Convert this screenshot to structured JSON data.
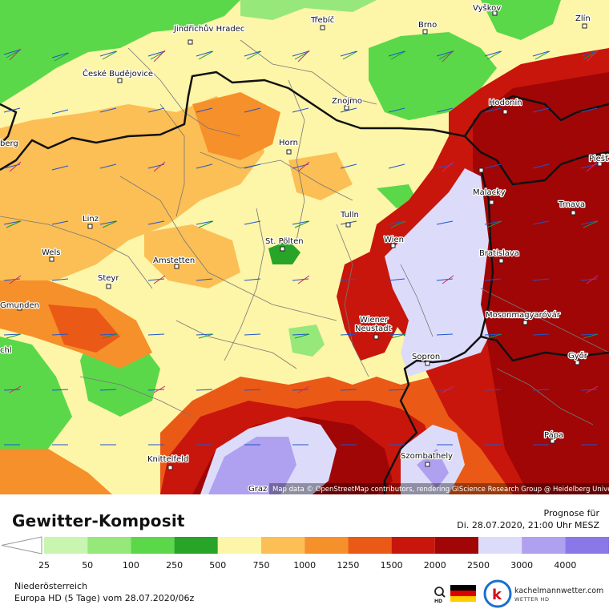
{
  "legend": {
    "title": "Gewitter-Komposit",
    "levels": [
      "25",
      "50",
      "100",
      "250",
      "500",
      "750",
      "1000",
      "1250",
      "1500",
      "2000",
      "2500",
      "3000",
      "4000"
    ],
    "colors": [
      "#ffffff",
      "#c8f5b0",
      "#96e87a",
      "#5ad84a",
      "#28a428",
      "#fdf5a8",
      "#fbbf55",
      "#f6902a",
      "#ea5a16",
      "#c8160c",
      "#a00606",
      "#dcdcfa",
      "#b0a0f0",
      "#8a78e8",
      "#5a4acc",
      "#3a2aa8"
    ]
  },
  "forecast": {
    "label": "Prognose für",
    "date": "Di. 28.07.2020, 21:00 Uhr MESZ"
  },
  "region": "Niederösterreich",
  "model": "Europa HD (5 Tage) vom  28.07.2020/06z",
  "brand": {
    "name": "kachelmannwetter.com",
    "sub": "WETTER HD",
    "flag": "de-flag"
  },
  "map": {
    "attribution": "Map data © OpenStreetMap contributors, rendering GIScience Research Group @ Heidelberg University",
    "cities": [
      {
        "name": "Jindřichův Hradec"
      },
      {
        "name": "Třebíč"
      },
      {
        "name": "Brno"
      },
      {
        "name": "Vyškov"
      },
      {
        "name": "Zlín"
      },
      {
        "name": "České Budějovice"
      },
      {
        "name": "Znojmo"
      },
      {
        "name": "Hodonín"
      },
      {
        "name": "Horn"
      },
      {
        "name": "Piešť"
      },
      {
        "name": "Malacky"
      },
      {
        "name": "Trnava"
      },
      {
        "name": "Linz"
      },
      {
        "name": "Tulln"
      },
      {
        "name": "Wien"
      },
      {
        "name": "St. Pölten"
      },
      {
        "name": "Wels"
      },
      {
        "name": "Amstetten"
      },
      {
        "name": "Bratislava"
      },
      {
        "name": "Steyr"
      },
      {
        "name": "Gmunden"
      },
      {
        "name": "Wiener Neustadt"
      },
      {
        "name": "Mosonmagyaróvár"
      },
      {
        "name": "Sopron"
      },
      {
        "name": "Győr"
      },
      {
        "name": "Pápa"
      },
      {
        "name": "Knittelfeld"
      },
      {
        "name": "Szombathely"
      },
      {
        "name": "Graz"
      },
      {
        "name": "berg"
      },
      {
        "name": "chl"
      }
    ]
  }
}
